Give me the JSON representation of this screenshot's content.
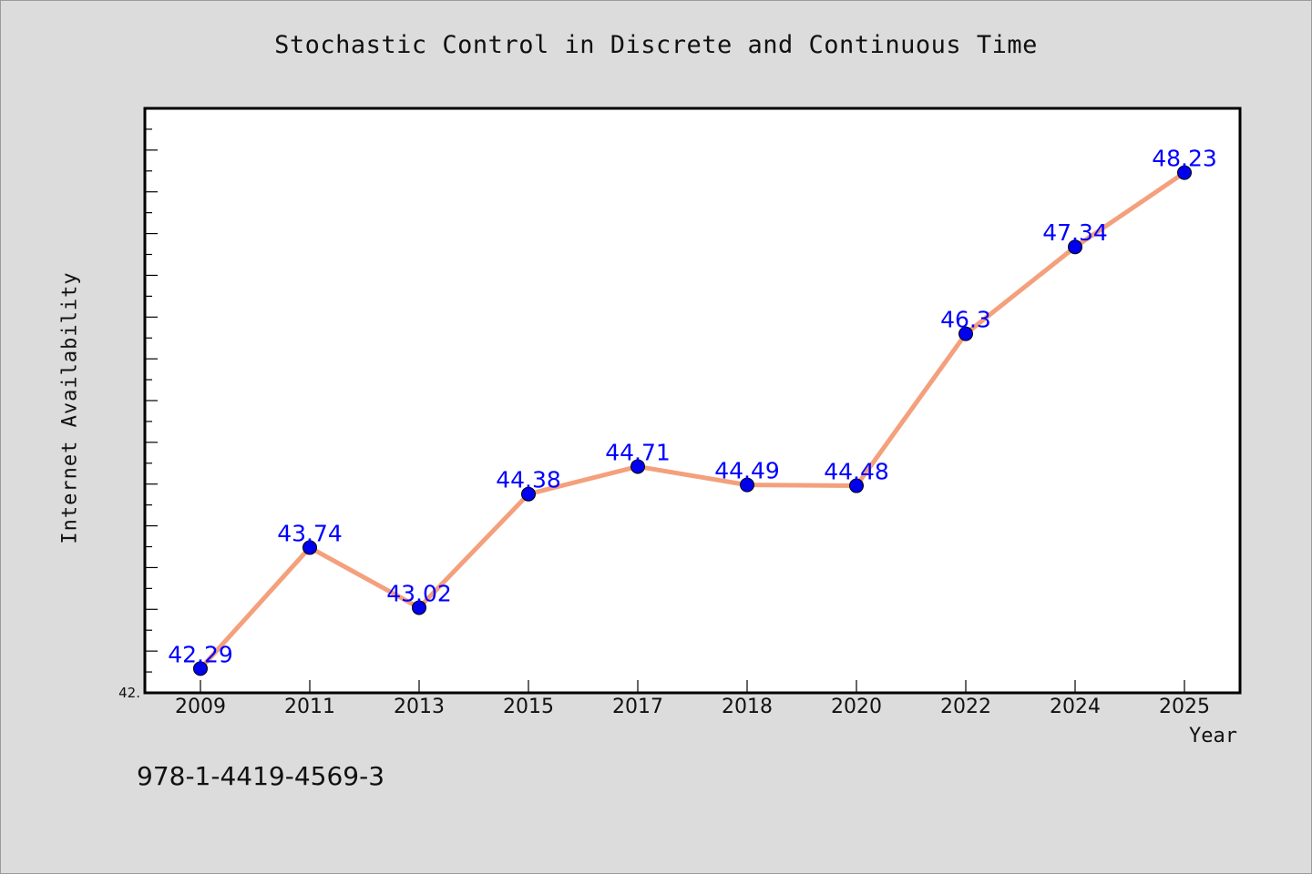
{
  "chart_data": {
    "type": "line",
    "title": "Stochastic Control in Discrete and Continuous Time",
    "xlabel": "Year",
    "ylabel": "Internet Availability",
    "categories": [
      "2009",
      "2011",
      "2013",
      "2015",
      "2017",
      "2018",
      "2020",
      "2022",
      "2024",
      "2025"
    ],
    "series": [
      {
        "values": [
          42.29,
          43.74,
          43.02,
          44.38,
          44.71,
          44.49,
          44.48,
          46.3,
          47.34,
          48.23
        ],
        "labels": [
          "42.29",
          "43.74",
          "43.02",
          "44.38",
          "44.71",
          "44.49",
          "44.48",
          "46.3",
          "47.34",
          "48.23"
        ]
      }
    ],
    "ylim": [
      42.0,
      49.0
    ],
    "y_tick_label": "42.",
    "grid": false,
    "legend": "none",
    "line_color": "#f4a07c",
    "marker_color": "#0000ee",
    "label_color": "#0000ff",
    "background_color": "#dcdcdc",
    "plot_background": "#ffffff"
  },
  "footer": {
    "isbn": "978-1-4419-4569-3"
  }
}
